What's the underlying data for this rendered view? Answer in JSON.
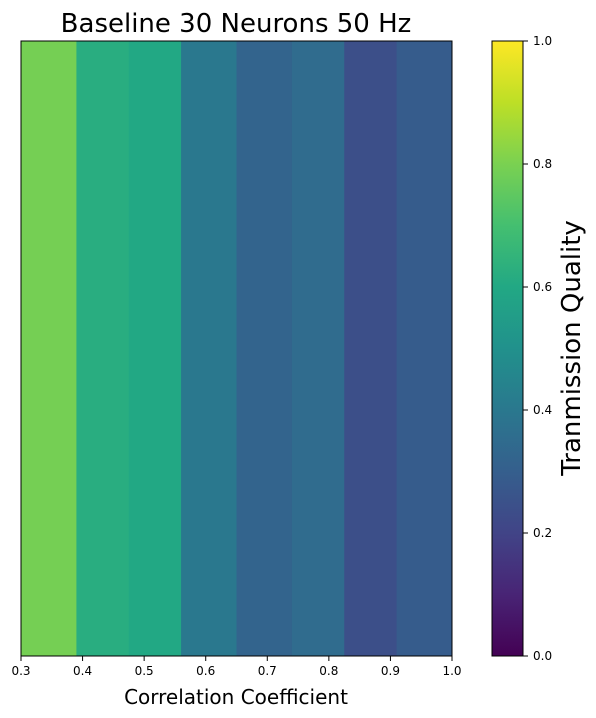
{
  "chart_data": {
    "type": "heatmap",
    "title": "Baseline 30 Neurons 50 Hz",
    "xlabel": "Correlation Coefficient",
    "ylabel": "",
    "xlim": [
      0.3,
      1.0
    ],
    "x_ticks": [
      "0.3",
      "0.4",
      "0.5",
      "0.6",
      "0.7",
      "0.8",
      "0.9",
      "1.0"
    ],
    "y_ticks": [],
    "cells": [
      {
        "x0": 0.3,
        "x1": 0.39,
        "value": 0.79
      },
      {
        "x0": 0.39,
        "x1": 0.475,
        "value": 0.62
      },
      {
        "x0": 0.475,
        "x1": 0.56,
        "value": 0.6
      },
      {
        "x0": 0.56,
        "x1": 0.65,
        "value": 0.4
      },
      {
        "x0": 0.65,
        "x1": 0.74,
        "value": 0.32
      },
      {
        "x0": 0.74,
        "x1": 0.825,
        "value": 0.35
      },
      {
        "x0": 0.825,
        "x1": 0.91,
        "value": 0.24
      },
      {
        "x0": 0.91,
        "x1": 1.0,
        "value": 0.29
      }
    ],
    "colorbar": {
      "label": "Tranmission Quality",
      "range": [
        0.0,
        1.0
      ],
      "ticks": [
        "0.0",
        "0.2",
        "0.4",
        "0.6",
        "0.8",
        "1.0"
      ],
      "colormap": "viridis"
    },
    "grid": false
  }
}
